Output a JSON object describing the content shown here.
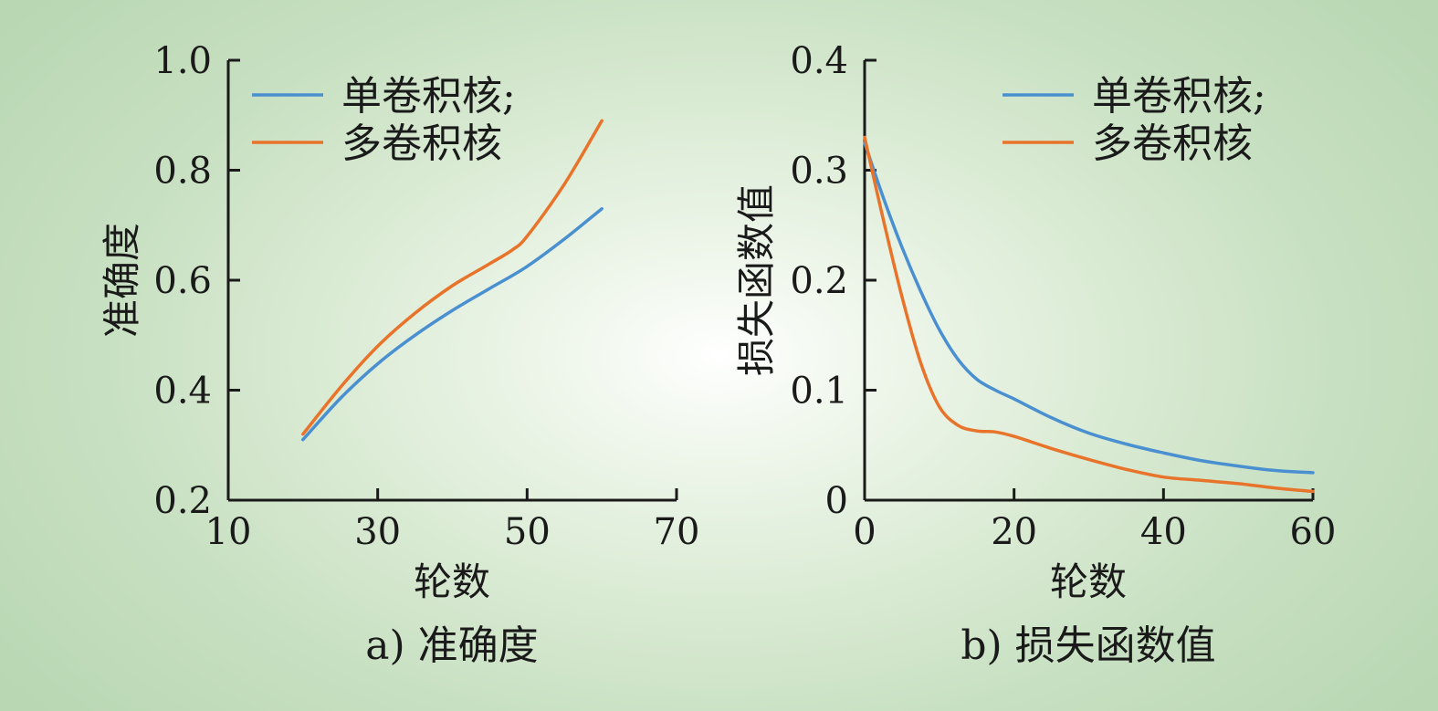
{
  "chart_data": [
    {
      "type": "line",
      "title": "",
      "caption": "a) 准确度",
      "xlabel": "轮数",
      "ylabel": "准确度",
      "xlim": [
        10,
        70
      ],
      "ylim": [
        0.2,
        1.0
      ],
      "xticks": [
        10,
        30,
        50,
        70
      ],
      "yticks": [
        0.2,
        0.4,
        0.6,
        0.8,
        1.0
      ],
      "xtick_labels": [
        "10",
        "30",
        "50",
        "70"
      ],
      "ytick_labels": [
        "0.2",
        "0.4",
        "0.6",
        "0.8",
        "1.0"
      ],
      "legend_position": "top-left",
      "grid": false,
      "series": [
        {
          "name": "单卷积核;",
          "color": "#4a90d0",
          "x": [
            20,
            25,
            30,
            35,
            40,
            45,
            50,
            55,
            60
          ],
          "y": [
            0.31,
            0.385,
            0.448,
            0.5,
            0.545,
            0.585,
            0.625,
            0.675,
            0.73
          ]
        },
        {
          "name": "多卷积核",
          "color": "#e8732a",
          "x": [
            20,
            25,
            30,
            35,
            40,
            45,
            48,
            50,
            55,
            60
          ],
          "y": [
            0.32,
            0.405,
            0.48,
            0.54,
            0.59,
            0.63,
            0.655,
            0.68,
            0.775,
            0.89
          ]
        }
      ]
    },
    {
      "type": "line",
      "title": "",
      "caption": "b) 损失函数值",
      "xlabel": "轮数",
      "ylabel": "损失函数值",
      "xlim": [
        0,
        60
      ],
      "ylim": [
        0,
        0.4
      ],
      "xticks": [
        0,
        20,
        40,
        60
      ],
      "yticks": [
        0,
        0.1,
        0.2,
        0.3,
        0.4
      ],
      "xtick_labels": [
        "0",
        "20",
        "40",
        "60"
      ],
      "ytick_labels": [
        "0",
        "0.1",
        "0.2",
        "0.3",
        "0.4"
      ],
      "legend_position": "top-right",
      "grid": false,
      "series": [
        {
          "name": "单卷积核;",
          "color": "#4a90d0",
          "x": [
            0,
            2.5,
            5,
            7.5,
            10,
            12.5,
            15,
            17.5,
            20,
            25,
            30,
            35,
            40,
            45,
            50,
            55,
            60
          ],
          "y": [
            0.325,
            0.275,
            0.23,
            0.19,
            0.155,
            0.128,
            0.11,
            0.1,
            0.092,
            0.075,
            0.061,
            0.051,
            0.043,
            0.036,
            0.031,
            0.027,
            0.025
          ]
        },
        {
          "name": "多卷积核",
          "color": "#e8732a",
          "x": [
            0,
            2.5,
            5,
            7.5,
            10,
            12.5,
            15,
            17.5,
            20,
            25,
            30,
            35,
            40,
            45,
            50,
            55,
            60
          ],
          "y": [
            0.33,
            0.255,
            0.185,
            0.125,
            0.085,
            0.068,
            0.063,
            0.062,
            0.058,
            0.047,
            0.037,
            0.028,
            0.021,
            0.018,
            0.015,
            0.011,
            0.008
          ]
        }
      ]
    }
  ]
}
